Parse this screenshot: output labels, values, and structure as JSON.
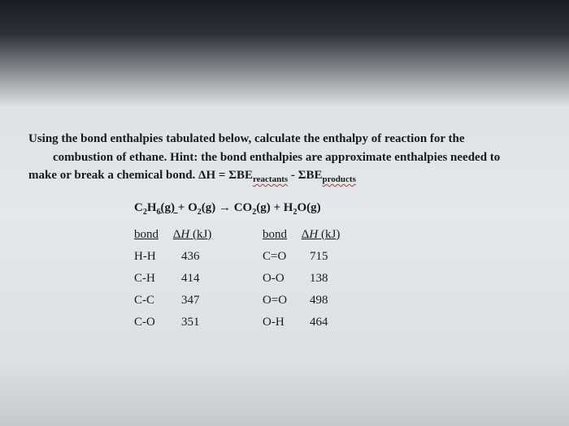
{
  "question": {
    "line1a": "Using the bond enthalpies tabulated below, calculate the enthalpy of reaction for the",
    "line2a": "combustion of ethane. Hint: the bond enthalpies are approximate enthalpies needed to",
    "line3a": "make or break a chemical bond. ΔH = ΣBE",
    "line3b": "reactants",
    "line3c": " - ΣBE",
    "line3d": "products"
  },
  "equation": {
    "c2h6": "C",
    "sub2": "2",
    "h6": "H",
    "sub6": "6",
    "g_under": "(g)  ",
    "plus": "+  O",
    "sub2b": "2",
    "g2": "(g)  →  CO",
    "sub2c": "2",
    "g3": "(g)  +  H",
    "sub2d": "2",
    "og": "O(g)"
  },
  "table_headers": {
    "bond": "bond",
    "dh": "ΔH (kJ)"
  },
  "left_table": [
    {
      "bond": "H-H",
      "value": "436"
    },
    {
      "bond": "C-H",
      "value": "414"
    },
    {
      "bond": "C-C",
      "value": "347"
    },
    {
      "bond": "C-O",
      "value": "351"
    }
  ],
  "right_table": [
    {
      "bond": "C=O",
      "value": "715"
    },
    {
      "bond": "O-O",
      "value": "138"
    },
    {
      "bond": "O=O",
      "value": "498"
    },
    {
      "bond": "O-H",
      "value": "464"
    }
  ]
}
